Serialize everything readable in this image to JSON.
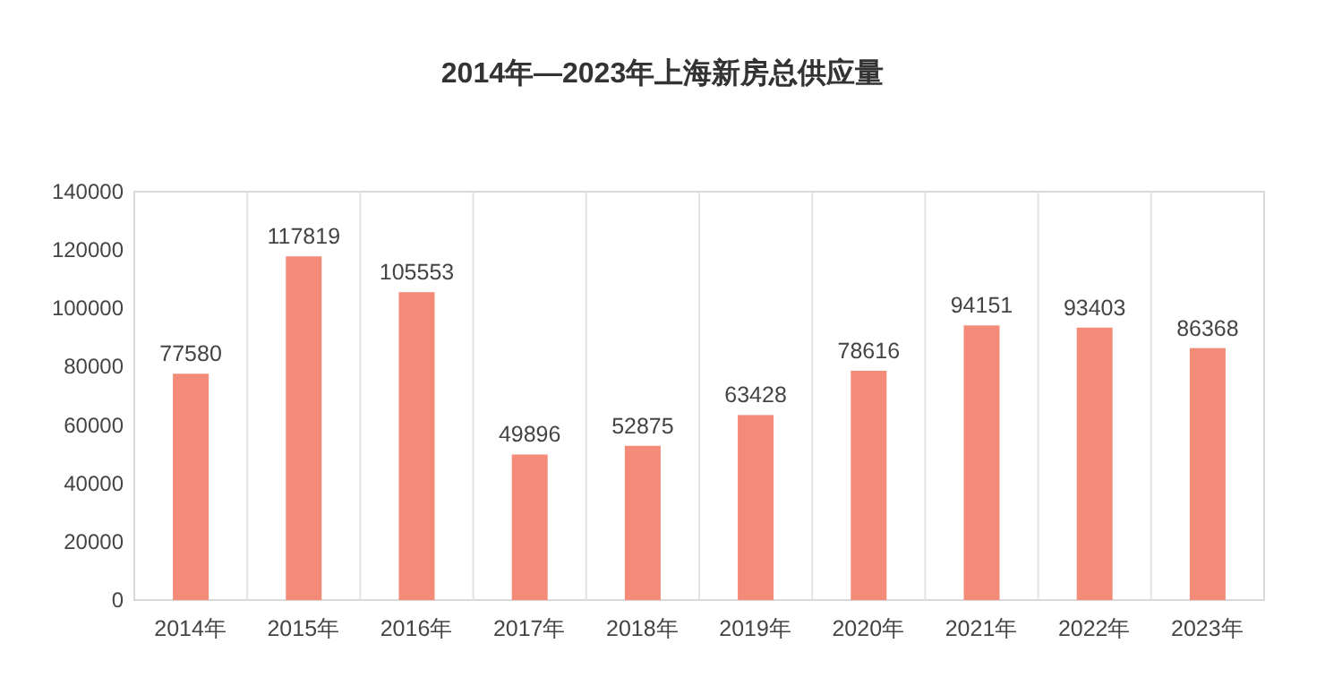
{
  "chart_data": {
    "type": "bar",
    "title": "2014年—2023年上海新房总供应量",
    "categories": [
      "2014年",
      "2015年",
      "2016年",
      "2017年",
      "2018年",
      "2019年",
      "2020年",
      "2021年",
      "2022年",
      "2023年"
    ],
    "values": [
      77580,
      117819,
      105553,
      49896,
      52875,
      63428,
      78616,
      94151,
      93403,
      86368
    ],
    "color": "#f48a78",
    "data_labels": true,
    "grid": "x",
    "ylim": [
      0,
      140000
    ],
    "yticks": [
      0,
      20000,
      40000,
      60000,
      80000,
      100000,
      120000,
      140000
    ]
  }
}
